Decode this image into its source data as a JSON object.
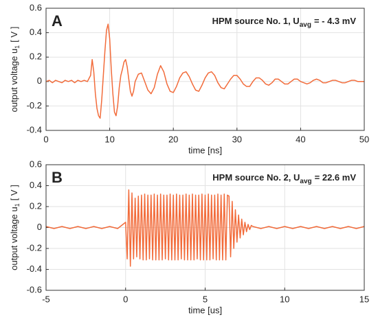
{
  "chart_data": [
    {
      "type": "line",
      "panel_label": "A",
      "annotation": {
        "text": "HPM source No. 1, U",
        "subscript": "avg",
        "suffix": "= - 4.3 mV"
      },
      "ylabel": {
        "text": "output voltage u",
        "subscript": "1",
        "suffix": "[ V ]"
      },
      "xlabel": "time [ns]",
      "color": "#f26b3a",
      "grid": true,
      "xlim": [
        0,
        50
      ],
      "xticks": [
        0,
        10,
        20,
        30,
        40,
        50
      ],
      "ylim": [
        -0.4,
        0.6
      ],
      "yticks": [
        -0.4,
        -0.2,
        0,
        0.2,
        0.4,
        0.6
      ],
      "x": [
        0,
        0.5,
        1,
        1.5,
        2,
        2.5,
        3,
        3.5,
        4,
        4.5,
        5,
        5.5,
        6,
        6.5,
        7,
        7.25,
        7.5,
        7.75,
        8,
        8.25,
        8.5,
        8.75,
        9,
        9.25,
        9.5,
        9.75,
        10,
        10.25,
        10.5,
        10.75,
        11,
        11.25,
        11.5,
        11.75,
        12,
        12.25,
        12.5,
        12.75,
        13,
        13.25,
        13.5,
        13.75,
        14,
        14.5,
        15,
        15.5,
        16,
        16.5,
        17,
        17.5,
        18,
        18.5,
        19,
        19.5,
        20,
        20.5,
        21,
        21.5,
        22,
        22.5,
        23,
        23.5,
        24,
        24.5,
        25,
        25.5,
        26,
        26.5,
        27,
        27.5,
        28,
        28.5,
        29,
        29.5,
        30,
        30.5,
        31,
        31.5,
        32,
        32.5,
        33,
        33.5,
        34,
        34.5,
        35,
        35.5,
        36,
        36.5,
        37,
        37.5,
        38,
        38.5,
        39,
        39.5,
        40,
        40.5,
        41,
        41.5,
        42,
        42.5,
        43,
        43.5,
        44,
        44.5,
        45,
        45.5,
        46,
        46.5,
        47,
        47.5,
        48,
        48.5,
        49,
        49.5,
        50
      ],
      "values": [
        0,
        0.01,
        -0.01,
        0.01,
        0,
        -0.01,
        0.01,
        0,
        0.01,
        -0.01,
        0.01,
        0,
        0.01,
        0,
        0.05,
        0.18,
        0.08,
        -0.1,
        -0.22,
        -0.28,
        -0.3,
        -0.15,
        0.05,
        0.25,
        0.42,
        0.47,
        0.35,
        0.1,
        -0.1,
        -0.25,
        -0.28,
        -0.2,
        -0.05,
        0.05,
        0.1,
        0.16,
        0.18,
        0.12,
        0.02,
        -0.08,
        -0.12,
        -0.08,
        0,
        0.06,
        0.07,
        0,
        -0.07,
        -0.1,
        -0.05,
        0.06,
        0.13,
        0.08,
        -0.02,
        -0.08,
        -0.09,
        -0.04,
        0.03,
        0.07,
        0.08,
        0.04,
        -0.02,
        -0.07,
        -0.08,
        -0.03,
        0.03,
        0.07,
        0.08,
        0.05,
        -0.01,
        -0.05,
        -0.06,
        -0.02,
        0.02,
        0.05,
        0.05,
        0.02,
        -0.02,
        -0.04,
        -0.04,
        0,
        0.03,
        0.03,
        0.01,
        -0.02,
        -0.03,
        -0.01,
        0.02,
        0.02,
        0,
        -0.02,
        -0.02,
        0,
        0.02,
        0.02,
        0,
        -0.01,
        -0.02,
        -0.01,
        0.01,
        0.02,
        0.01,
        -0.01,
        -0.01,
        0,
        0.01,
        0.01,
        0,
        -0.01,
        -0.01,
        0,
        0.01,
        0.01,
        0,
        0,
        0
      ]
    },
    {
      "type": "line",
      "panel_label": "B",
      "annotation": {
        "text": "HPM source No. 2, U",
        "subscript": "avg",
        "suffix": "= 22.6 mV"
      },
      "ylabel": {
        "text": "output voltage u",
        "subscript": "1",
        "suffix": "[ V ]"
      },
      "xlabel": "time [us]",
      "color": "#f26b3a",
      "grid": true,
      "xlim": [
        -5,
        15
      ],
      "xticks": [
        -5,
        0,
        5,
        10,
        15
      ],
      "ylim": [
        -0.6,
        0.6
      ],
      "yticks": [
        -0.6,
        -0.4,
        -0.2,
        0,
        0.2,
        0.4,
        0.6
      ],
      "x": [
        -5,
        -4.5,
        -4,
        -3.5,
        -3,
        -2.5,
        -2,
        -1.5,
        -1,
        -0.5,
        0,
        0.1,
        0.2,
        0.3,
        0.4,
        0.5,
        0.6,
        0.7,
        0.8,
        0.9,
        1,
        1.1,
        1.2,
        1.3,
        1.4,
        1.5,
        1.6,
        1.7,
        1.8,
        1.9,
        2,
        2.1,
        2.2,
        2.3,
        2.4,
        2.5,
        2.6,
        2.7,
        2.8,
        2.9,
        3,
        3.1,
        3.2,
        3.3,
        3.4,
        3.5,
        3.6,
        3.7,
        3.8,
        3.9,
        4,
        4.1,
        4.2,
        4.3,
        4.4,
        4.5,
        4.6,
        4.7,
        4.8,
        4.9,
        5,
        5.1,
        5.2,
        5.3,
        5.4,
        5.5,
        5.6,
        5.7,
        5.8,
        5.9,
        6,
        6.1,
        6.2,
        6.3,
        6.4,
        6.5,
        6.6,
        6.7,
        6.8,
        6.9,
        7,
        7.1,
        7.2,
        7.3,
        7.4,
        7.5,
        7.6,
        7.7,
        7.8,
        7.9,
        8,
        8.5,
        9,
        9.5,
        10,
        10.5,
        11,
        11.5,
        12,
        12.5,
        13,
        13.5,
        14,
        14.5,
        15
      ],
      "values": [
        0.01,
        -0.01,
        0.01,
        -0.01,
        0.01,
        -0.01,
        0.01,
        -0.01,
        0.01,
        -0.01,
        0.05,
        -0.3,
        0.36,
        -0.37,
        0.33,
        -0.3,
        0.28,
        -0.28,
        0.3,
        -0.3,
        0.31,
        -0.31,
        0.32,
        -0.31,
        0.31,
        -0.3,
        0.31,
        -0.31,
        0.32,
        -0.31,
        0.31,
        -0.31,
        0.32,
        -0.31,
        0.31,
        -0.3,
        0.31,
        -0.31,
        0.32,
        -0.31,
        0.31,
        -0.31,
        0.32,
        -0.31,
        0.31,
        -0.3,
        0.31,
        -0.31,
        0.32,
        -0.31,
        0.31,
        -0.31,
        0.32,
        -0.31,
        0.31,
        -0.3,
        0.31,
        -0.31,
        0.32,
        -0.31,
        0.31,
        -0.31,
        0.32,
        -0.31,
        0.31,
        -0.3,
        0.31,
        -0.31,
        0.32,
        -0.31,
        0.31,
        -0.31,
        0.32,
        -0.31,
        0.31,
        0.3,
        -0.28,
        0.25,
        -0.2,
        0.17,
        -0.14,
        0.12,
        -0.1,
        0.08,
        -0.07,
        0.05,
        -0.04,
        0.03,
        -0.02,
        0.02,
        0.01,
        -0.01,
        0.01,
        -0.01,
        0.01,
        -0.01,
        0.01,
        -0.01,
        0.01,
        -0.01,
        0.01,
        -0.01,
        0.01,
        -0.01,
        0.01
      ]
    }
  ]
}
